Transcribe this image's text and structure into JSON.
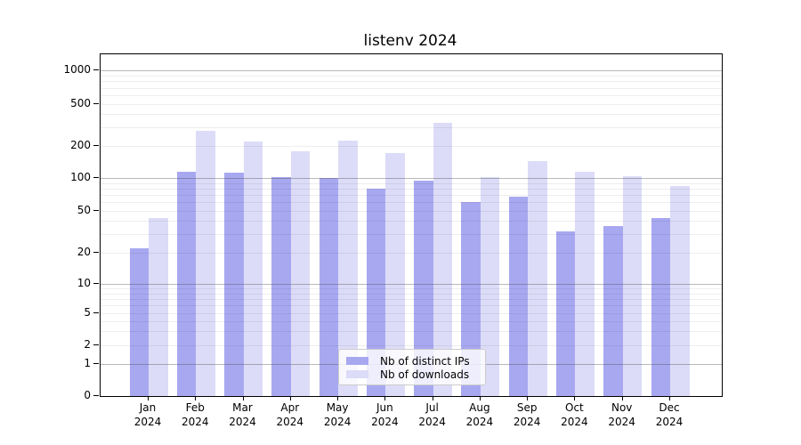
{
  "title": "listenv 2024",
  "chart_data": {
    "type": "bar",
    "title": "listenv 2024",
    "categories": [
      "Jan 2024",
      "Feb 2024",
      "Mar 2024",
      "Apr 2024",
      "May 2024",
      "Jun 2024",
      "Jul 2024",
      "Aug 2024",
      "Sep 2024",
      "Oct 2024",
      "Nov 2024",
      "Dec 2024"
    ],
    "series": [
      {
        "name": "Nb of distinct IPs",
        "color": "#a8a8f1",
        "values": [
          22,
          114,
          112,
          103,
          100,
          80,
          95,
          60,
          68,
          32,
          36,
          43
        ]
      },
      {
        "name": "Nb of downloads",
        "color": "#dcdcf8",
        "values": [
          43,
          280,
          220,
          180,
          225,
          170,
          330,
          102,
          145,
          114,
          105,
          85
        ]
      }
    ],
    "xlabel": "",
    "ylabel": "",
    "yscale": "log",
    "y_ticks": [
      0,
      1,
      2,
      5,
      10,
      20,
      50,
      100,
      200,
      500,
      1000
    ],
    "ylim": [
      0,
      1500
    ],
    "grid": true,
    "legend_position": "lower center",
    "axis_color": "#000000",
    "grid_major_values": [
      1,
      10,
      100,
      1000
    ],
    "grid_minor_values": [
      2,
      3,
      4,
      5,
      6,
      7,
      8,
      9,
      20,
      30,
      40,
      50,
      60,
      70,
      80,
      90,
      200,
      300,
      400,
      500,
      600,
      700,
      800,
      900
    ]
  }
}
